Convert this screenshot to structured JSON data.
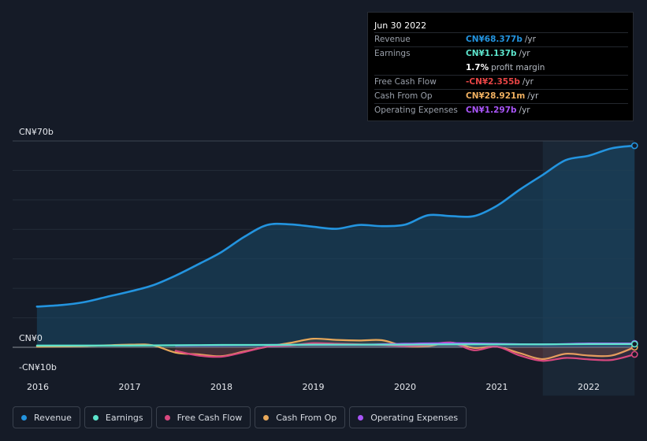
{
  "tooltip": {
    "date": "Jun 30 2022",
    "rows": [
      {
        "label": "Revenue",
        "value": "CN¥68.377b",
        "unit": "/yr",
        "color": "#2394df"
      },
      {
        "label": "Earnings",
        "value": "CN¥1.137b",
        "unit": "/yr",
        "color": "#5ce4cc"
      },
      {
        "label": "",
        "value": "1.7%",
        "unit": "profit margin",
        "color": "#ffffff"
      },
      {
        "label": "Free Cash Flow",
        "value": "-CN¥2.355b",
        "unit": "/yr",
        "color": "#e84545"
      },
      {
        "label": "Cash From Op",
        "value": "CN¥28.921m",
        "unit": "/yr",
        "color": "#f0b060"
      },
      {
        "label": "Operating Expenses",
        "value": "CN¥1.297b",
        "unit": "/yr",
        "color": "#a855f7"
      }
    ]
  },
  "legend": [
    {
      "label": "Revenue",
      "color": "#2394df"
    },
    {
      "label": "Earnings",
      "color": "#5ce4cc"
    },
    {
      "label": "Free Cash Flow",
      "color": "#d9487f"
    },
    {
      "label": "Cash From Op",
      "color": "#e8a85a"
    },
    {
      "label": "Operating Expenses",
      "color": "#a855f7"
    }
  ],
  "chart_data": {
    "type": "line",
    "ylim": [
      -10,
      70
    ],
    "y_tick_labels": [
      {
        "value": 70,
        "label": "CN¥70b"
      },
      {
        "value": 0,
        "label": "CN¥0"
      },
      {
        "value": -10,
        "label": "-CN¥10b"
      }
    ],
    "x_tick_labels": [
      "2016",
      "2017",
      "2018",
      "2019",
      "2020",
      "2021",
      "2022"
    ],
    "x_tick_values": [
      2016,
      2017,
      2018,
      2019,
      2020,
      2021,
      2022
    ],
    "xlim": [
      2015.75,
      2022.5
    ],
    "highlight_from": 2021.5,
    "grid": true,
    "series": [
      {
        "name": "Revenue",
        "color": "#2394df",
        "fill": true,
        "x": [
          2015.99,
          2016.25,
          2016.5,
          2016.75,
          2017.0,
          2017.25,
          2017.5,
          2017.75,
          2018.0,
          2018.25,
          2018.5,
          2018.75,
          2019.0,
          2019.25,
          2019.5,
          2019.75,
          2020.0,
          2020.25,
          2020.5,
          2020.75,
          2021.0,
          2021.25,
          2021.5,
          2021.75,
          2022.0,
          2022.25,
          2022.5
        ],
        "y": [
          13.8,
          14.3,
          15.3,
          17.1,
          18.9,
          21.0,
          24.3,
          28.2,
          32.3,
          37.5,
          41.5,
          41.7,
          40.9,
          40.2,
          41.5,
          41.1,
          41.6,
          44.8,
          44.5,
          44.5,
          48.0,
          53.5,
          58.5,
          63.5,
          65.0,
          67.5,
          68.4
        ]
      },
      {
        "name": "Earnings",
        "color": "#5ce4cc",
        "x": [
          2015.99,
          2016.5,
          2017.0,
          2017.5,
          2018.0,
          2018.5,
          2019.0,
          2019.5,
          2020.0,
          2020.5,
          2021.0,
          2021.5,
          2022.0,
          2022.5
        ],
        "y": [
          0.6,
          0.6,
          0.6,
          0.7,
          0.8,
          0.8,
          0.9,
          0.9,
          0.9,
          1.0,
          1.0,
          1.0,
          1.1,
          1.1
        ]
      },
      {
        "name": "Free Cash Flow",
        "color": "#d9487f",
        "x": [
          2017.5,
          2017.75,
          2018.0,
          2018.25,
          2018.5,
          2018.75,
          2019.0,
          2019.25,
          2019.5,
          2019.75,
          2020.0,
          2020.25,
          2020.5,
          2020.75,
          2021.0,
          2021.25,
          2021.5,
          2021.75,
          2022.0,
          2022.25,
          2022.5
        ],
        "y": [
          -1.2,
          -2.8,
          -3.2,
          -1.6,
          0.2,
          0.6,
          1.4,
          1.2,
          1.0,
          0.8,
          0.4,
          0.8,
          1.6,
          -1.0,
          0.2,
          -2.8,
          -4.6,
          -3.6,
          -4.1,
          -4.3,
          -2.4
        ]
      },
      {
        "name": "Cash From Op",
        "color": "#e8a85a",
        "x": [
          2015.99,
          2016.5,
          2017.0,
          2017.25,
          2017.5,
          2017.75,
          2018.0,
          2018.25,
          2018.5,
          2018.75,
          2019.0,
          2019.25,
          2019.5,
          2019.75,
          2020.0,
          2020.25,
          2020.5,
          2020.75,
          2021.0,
          2021.25,
          2021.5,
          2021.75,
          2022.0,
          2022.25,
          2022.5
        ],
        "y": [
          0.2,
          0.4,
          0.9,
          0.7,
          -1.8,
          -2.4,
          -3.0,
          -1.4,
          0.2,
          1.5,
          2.9,
          2.5,
          2.3,
          2.4,
          0.4,
          0.4,
          1.6,
          -0.2,
          0.2,
          -2.0,
          -4.0,
          -2.2,
          -2.8,
          -2.8,
          0.03
        ]
      },
      {
        "name": "Operating Expenses",
        "color": "#a855f7",
        "x": [
          2017.5,
          2018.0,
          2018.5,
          2019.0,
          2019.5,
          2020.0,
          2020.5,
          2021.0,
          2021.5,
          2022.0,
          2022.5
        ],
        "y": [
          0.6,
          0.7,
          0.8,
          0.9,
          0.9,
          1.2,
          1.4,
          1.2,
          1.0,
          1.3,
          1.3
        ]
      }
    ]
  }
}
